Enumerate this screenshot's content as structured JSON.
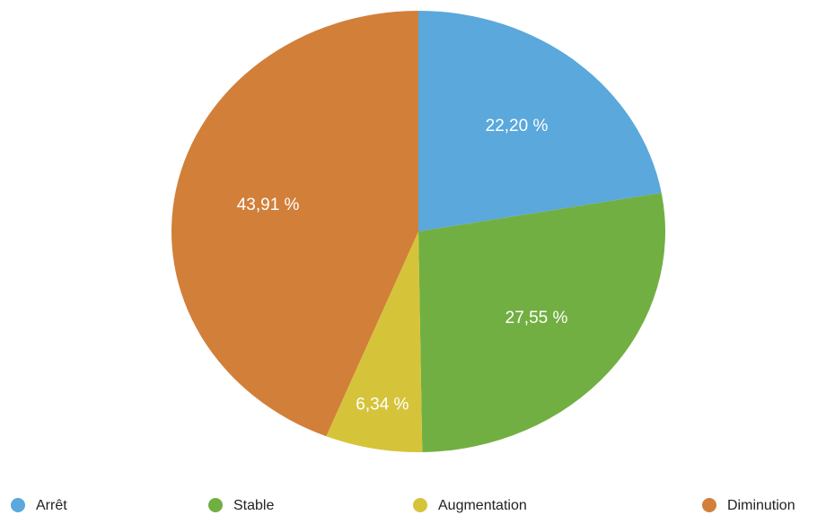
{
  "chart_data": {
    "type": "pie",
    "categories": [
      "Arrêt",
      "Stable",
      "Augmentation",
      "Diminution"
    ],
    "values": [
      22.2,
      27.55,
      6.34,
      43.91
    ],
    "value_labels": [
      "22,20 %",
      "27,55 %",
      "6,34 %",
      "43,91 %"
    ],
    "colors": [
      "#5aa8dc",
      "#72af42",
      "#d5c43a",
      "#d27f3a"
    ]
  }
}
